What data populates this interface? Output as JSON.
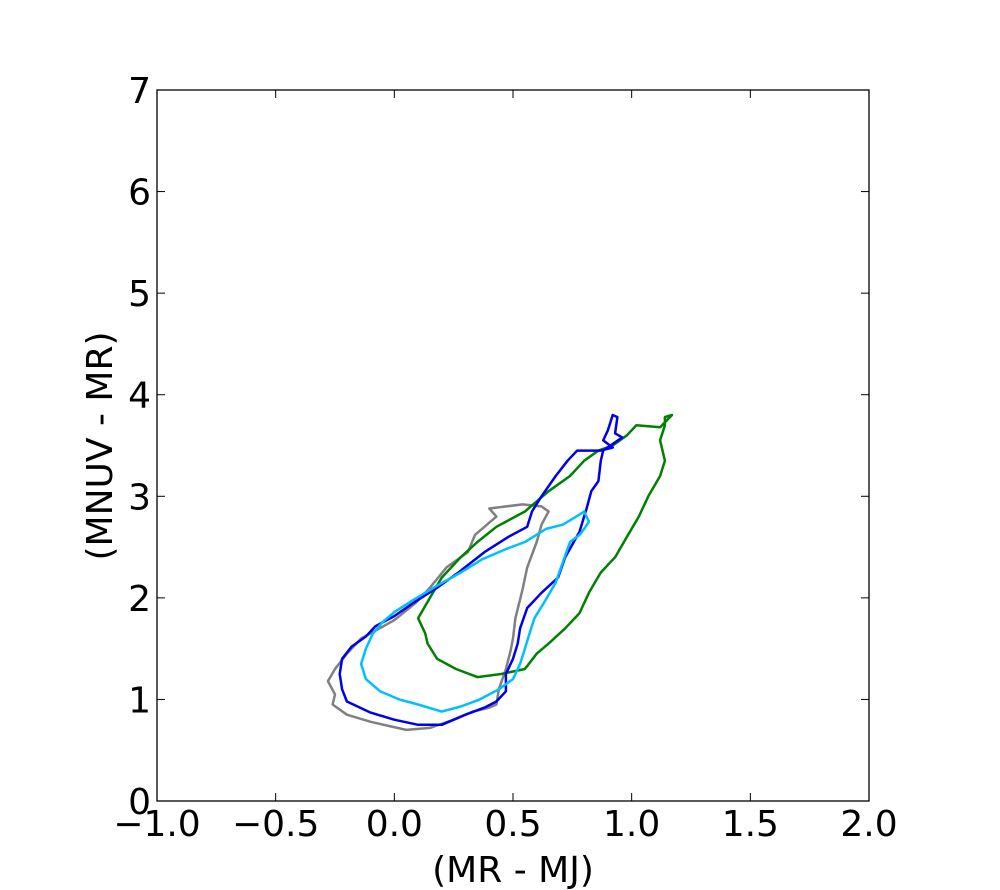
{
  "chart_data": {
    "type": "line",
    "title": "",
    "xlabel": "(MR - MJ)",
    "ylabel": "(MNUV - MR)",
    "xlim": [
      -1.0,
      2.0
    ],
    "ylim": [
      0,
      7
    ],
    "x_ticks": [
      -1.0,
      -0.5,
      0.0,
      0.5,
      1.0,
      1.5,
      2.0
    ],
    "x_tick_labels": [
      "−1.0",
      "−0.5",
      "0.0",
      "0.5",
      "1.0",
      "1.5",
      "2.0"
    ],
    "y_ticks": [
      0,
      1,
      2,
      3,
      4,
      5,
      6,
      7
    ],
    "y_tick_labels": [
      "0",
      "1",
      "2",
      "3",
      "4",
      "5",
      "6",
      "7"
    ],
    "grid": false,
    "legend": "none",
    "series": [
      {
        "color": "#808080",
        "points": [
          [
            0.62,
            2.9
          ],
          [
            0.54,
            2.92
          ],
          [
            0.4,
            2.88
          ],
          [
            0.43,
            2.8
          ],
          [
            0.34,
            2.62
          ],
          [
            0.31,
            2.45
          ],
          [
            0.22,
            2.3
          ],
          [
            0.15,
            2.1
          ],
          [
            0.09,
            1.95
          ],
          [
            0.0,
            1.78
          ],
          [
            -0.14,
            1.6
          ],
          [
            -0.2,
            1.45
          ],
          [
            -0.25,
            1.3
          ],
          [
            -0.28,
            1.18
          ],
          [
            -0.25,
            1.05
          ],
          [
            -0.26,
            0.95
          ],
          [
            -0.2,
            0.85
          ],
          [
            -0.1,
            0.78
          ],
          [
            0.05,
            0.7
          ],
          [
            0.15,
            0.72
          ],
          [
            0.25,
            0.8
          ],
          [
            0.33,
            0.88
          ],
          [
            0.4,
            0.92
          ],
          [
            0.43,
            0.95
          ],
          [
            0.44,
            1.1
          ],
          [
            0.47,
            1.3
          ],
          [
            0.49,
            1.48
          ],
          [
            0.5,
            1.6
          ],
          [
            0.51,
            1.8
          ],
          [
            0.54,
            2.08
          ],
          [
            0.56,
            2.3
          ],
          [
            0.6,
            2.55
          ],
          [
            0.62,
            2.72
          ],
          [
            0.65,
            2.85
          ],
          [
            0.62,
            2.9
          ]
        ]
      },
      {
        "color": "#008000",
        "points": [
          [
            1.14,
            3.78
          ],
          [
            1.17,
            3.8
          ],
          [
            1.12,
            3.68
          ],
          [
            1.02,
            3.7
          ],
          [
            0.98,
            3.6
          ],
          [
            0.92,
            3.5
          ],
          [
            0.86,
            3.45
          ],
          [
            0.8,
            3.35
          ],
          [
            0.74,
            3.2
          ],
          [
            0.65,
            3.05
          ],
          [
            0.55,
            2.85
          ],
          [
            0.43,
            2.7
          ],
          [
            0.35,
            2.55
          ],
          [
            0.28,
            2.4
          ],
          [
            0.2,
            2.2
          ],
          [
            0.15,
            2.0
          ],
          [
            0.1,
            1.8
          ],
          [
            0.13,
            1.65
          ],
          [
            0.14,
            1.55
          ],
          [
            0.18,
            1.4
          ],
          [
            0.26,
            1.3
          ],
          [
            0.35,
            1.22
          ],
          [
            0.45,
            1.25
          ],
          [
            0.55,
            1.3
          ],
          [
            0.6,
            1.45
          ],
          [
            0.65,
            1.55
          ],
          [
            0.72,
            1.7
          ],
          [
            0.78,
            1.85
          ],
          [
            0.82,
            2.05
          ],
          [
            0.87,
            2.25
          ],
          [
            0.93,
            2.4
          ],
          [
            0.98,
            2.6
          ],
          [
            1.03,
            2.8
          ],
          [
            1.07,
            3.0
          ],
          [
            1.12,
            3.2
          ],
          [
            1.14,
            3.35
          ],
          [
            1.12,
            3.55
          ],
          [
            1.14,
            3.7
          ],
          [
            1.14,
            3.78
          ]
        ]
      },
      {
        "color": "#0000ee",
        "points": [
          [
            0.92,
            3.8
          ],
          [
            0.9,
            3.65
          ],
          [
            0.88,
            3.55
          ],
          [
            0.92,
            3.48
          ],
          [
            0.87,
            3.45
          ],
          [
            0.77,
            3.45
          ],
          [
            0.73,
            3.35
          ],
          [
            0.68,
            3.2
          ],
          [
            0.62,
            3.0
          ],
          [
            0.58,
            2.85
          ],
          [
            0.56,
            2.7
          ],
          [
            0.48,
            2.6
          ],
          [
            0.38,
            2.45
          ],
          [
            0.27,
            2.25
          ],
          [
            0.18,
            2.1
          ],
          [
            0.08,
            1.95
          ],
          [
            0.0,
            1.82
          ],
          [
            -0.08,
            1.72
          ],
          [
            -0.12,
            1.62
          ],
          [
            -0.18,
            1.52
          ],
          [
            -0.22,
            1.4
          ],
          [
            -0.23,
            1.25
          ],
          [
            -0.22,
            1.1
          ],
          [
            -0.2,
            0.98
          ],
          [
            -0.1,
            0.87
          ],
          [
            0.0,
            0.8
          ],
          [
            0.1,
            0.75
          ],
          [
            0.2,
            0.75
          ],
          [
            0.3,
            0.85
          ],
          [
            0.38,
            0.92
          ],
          [
            0.43,
            0.98
          ],
          [
            0.47,
            1.08
          ],
          [
            0.47,
            1.25
          ],
          [
            0.5,
            1.4
          ],
          [
            0.52,
            1.55
          ],
          [
            0.53,
            1.7
          ],
          [
            0.56,
            1.9
          ],
          [
            0.62,
            2.05
          ],
          [
            0.69,
            2.2
          ],
          [
            0.72,
            2.4
          ],
          [
            0.78,
            2.65
          ],
          [
            0.81,
            2.88
          ],
          [
            0.83,
            3.05
          ],
          [
            0.86,
            3.15
          ],
          [
            0.87,
            3.35
          ],
          [
            0.88,
            3.45
          ],
          [
            0.96,
            3.58
          ],
          [
            0.93,
            3.62
          ],
          [
            0.94,
            3.78
          ],
          [
            0.92,
            3.8
          ]
        ]
      },
      {
        "color": "#00bfff",
        "points": [
          [
            0.8,
            2.85
          ],
          [
            0.78,
            2.82
          ],
          [
            0.71,
            2.72
          ],
          [
            0.64,
            2.68
          ],
          [
            0.55,
            2.55
          ],
          [
            0.47,
            2.48
          ],
          [
            0.37,
            2.38
          ],
          [
            0.28,
            2.25
          ],
          [
            0.18,
            2.12
          ],
          [
            0.08,
            1.98
          ],
          [
            0.0,
            1.86
          ],
          [
            -0.05,
            1.76
          ],
          [
            -0.09,
            1.65
          ],
          [
            -0.12,
            1.5
          ],
          [
            -0.14,
            1.35
          ],
          [
            -0.12,
            1.2
          ],
          [
            -0.06,
            1.08
          ],
          [
            0.02,
            1.0
          ],
          [
            0.1,
            0.95
          ],
          [
            0.2,
            0.88
          ],
          [
            0.28,
            0.93
          ],
          [
            0.36,
            1.0
          ],
          [
            0.44,
            1.1
          ],
          [
            0.5,
            1.2
          ],
          [
            0.53,
            1.35
          ],
          [
            0.55,
            1.5
          ],
          [
            0.57,
            1.65
          ],
          [
            0.59,
            1.8
          ],
          [
            0.63,
            1.95
          ],
          [
            0.68,
            2.15
          ],
          [
            0.71,
            2.35
          ],
          [
            0.74,
            2.55
          ],
          [
            0.78,
            2.62
          ],
          [
            0.8,
            2.68
          ],
          [
            0.82,
            2.75
          ],
          [
            0.8,
            2.85
          ]
        ]
      }
    ]
  }
}
